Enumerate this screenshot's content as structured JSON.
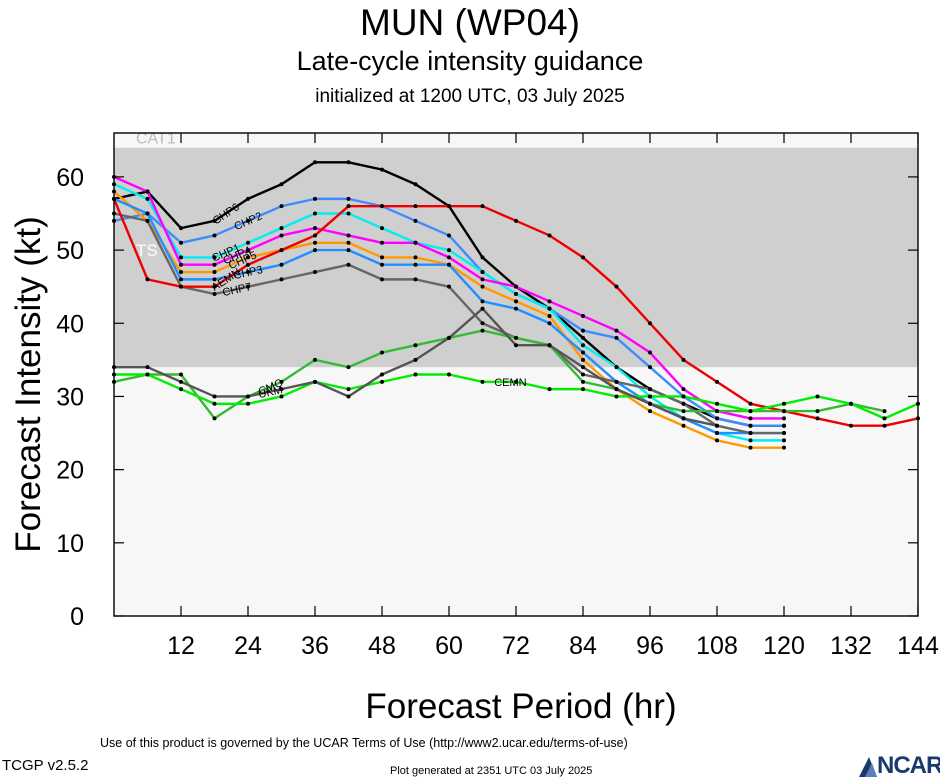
{
  "header": {
    "title": "MUN (WP04)",
    "subtitle": "Late-cycle intensity guidance",
    "init": "initialized at 1200 UTC, 03 July 2025"
  },
  "footer": {
    "terms": "Use of this product is governed by the UCAR Terms of Use (http://www2.ucar.edu/terms-of-use)",
    "version": "TCGP v2.5.2",
    "generated": "Plot generated at 2351 UTC   03 July 2025",
    "logo": "NCAR"
  },
  "colors": {
    "band_ts": "#cfcfcf",
    "band_light": "#f7f7f7",
    "band_label": "#ffffff",
    "band_label_cat": "#bbbbbb"
  },
  "chart_data": {
    "type": "line",
    "xlabel": "Forecast Period (hr)",
    "ylabel": "Forecast Intensity (kt)",
    "xlim": [
      0,
      144
    ],
    "ylim": [
      0,
      66
    ],
    "xticks": [
      12,
      24,
      36,
      48,
      60,
      72,
      84,
      96,
      108,
      120,
      132,
      144
    ],
    "yticks": [
      0,
      10,
      20,
      30,
      40,
      50,
      60
    ],
    "grid": false,
    "bands": [
      {
        "label": "TS",
        "from": 34,
        "to": 64
      },
      {
        "label": "CAT1",
        "from": 64,
        "to": 66
      }
    ],
    "series": [
      {
        "name": "CHP6",
        "color": "#000000",
        "label_at": 20,
        "points": [
          [
            0,
            57
          ],
          [
            6,
            58
          ],
          [
            12,
            53
          ],
          [
            18,
            54
          ],
          [
            24,
            57
          ],
          [
            30,
            59
          ],
          [
            36,
            62
          ],
          [
            42,
            62
          ],
          [
            48,
            61
          ],
          [
            54,
            59
          ],
          [
            60,
            56
          ],
          [
            66,
            49
          ],
          [
            72,
            45
          ],
          [
            78,
            42
          ],
          [
            84,
            38
          ],
          [
            90,
            34
          ],
          [
            96,
            31
          ],
          [
            102,
            29
          ],
          [
            108,
            27
          ],
          [
            114,
            26
          ],
          [
            120,
            26
          ]
        ]
      },
      {
        "name": "CHP2",
        "color": "#3c8cff",
        "label_at": 24,
        "points": [
          [
            0,
            54
          ],
          [
            6,
            55
          ],
          [
            12,
            51
          ],
          [
            18,
            52
          ],
          [
            24,
            54
          ],
          [
            30,
            56
          ],
          [
            36,
            57
          ],
          [
            42,
            57
          ],
          [
            48,
            56
          ],
          [
            54,
            54
          ],
          [
            60,
            52
          ],
          [
            66,
            47
          ],
          [
            72,
            44
          ],
          [
            78,
            42
          ],
          [
            84,
            39
          ],
          [
            90,
            38
          ],
          [
            96,
            34
          ],
          [
            102,
            30
          ],
          [
            108,
            27
          ],
          [
            114,
            26
          ],
          [
            120,
            26
          ]
        ]
      },
      {
        "name": "CHP1",
        "color": "#00eeee",
        "label_at": 20,
        "points": [
          [
            0,
            59
          ],
          [
            6,
            57
          ],
          [
            12,
            49
          ],
          [
            18,
            49
          ],
          [
            24,
            51
          ],
          [
            30,
            53
          ],
          [
            36,
            55
          ],
          [
            42,
            55
          ],
          [
            48,
            53
          ],
          [
            54,
            51
          ],
          [
            60,
            50
          ],
          [
            66,
            47
          ],
          [
            72,
            44
          ],
          [
            78,
            42
          ],
          [
            84,
            37
          ],
          [
            90,
            34
          ],
          [
            96,
            30
          ],
          [
            102,
            27
          ],
          [
            108,
            25
          ],
          [
            114,
            24
          ],
          [
            120,
            24
          ]
        ]
      },
      {
        "name": "CHP4",
        "color": "#ff00ff",
        "label_at": 22,
        "points": [
          [
            0,
            60
          ],
          [
            6,
            58
          ],
          [
            12,
            48
          ],
          [
            18,
            48
          ],
          [
            24,
            50
          ],
          [
            30,
            52
          ],
          [
            36,
            53
          ],
          [
            42,
            52
          ],
          [
            48,
            51
          ],
          [
            54,
            51
          ],
          [
            60,
            49
          ],
          [
            66,
            46
          ],
          [
            72,
            45
          ],
          [
            78,
            43
          ],
          [
            84,
            41
          ],
          [
            90,
            39
          ],
          [
            96,
            36
          ],
          [
            102,
            31
          ],
          [
            108,
            28
          ],
          [
            114,
            27
          ],
          [
            120,
            27
          ]
        ]
      },
      {
        "name": "CHP5",
        "color": "#ff9900",
        "label_at": 23,
        "points": [
          [
            0,
            58
          ],
          [
            6,
            54
          ],
          [
            12,
            47
          ],
          [
            18,
            47
          ],
          [
            24,
            49
          ],
          [
            30,
            50
          ],
          [
            36,
            51
          ],
          [
            42,
            51
          ],
          [
            48,
            49
          ],
          [
            54,
            49
          ],
          [
            60,
            48
          ],
          [
            66,
            45
          ],
          [
            72,
            43
          ],
          [
            78,
            41
          ],
          [
            84,
            35
          ],
          [
            90,
            31
          ],
          [
            96,
            28
          ],
          [
            102,
            26
          ],
          [
            108,
            24
          ],
          [
            114,
            23
          ],
          [
            120,
            23
          ]
        ]
      },
      {
        "name": "CHP3",
        "color": "#1e90ff",
        "label_at": 24,
        "points": [
          [
            0,
            57
          ],
          [
            6,
            55
          ],
          [
            12,
            46
          ],
          [
            18,
            46
          ],
          [
            24,
            47
          ],
          [
            30,
            48
          ],
          [
            36,
            50
          ],
          [
            42,
            50
          ],
          [
            48,
            48
          ],
          [
            54,
            48
          ],
          [
            60,
            48
          ],
          [
            66,
            43
          ],
          [
            72,
            42
          ],
          [
            78,
            40
          ],
          [
            84,
            36
          ],
          [
            90,
            32
          ],
          [
            96,
            29
          ],
          [
            102,
            27
          ],
          [
            108,
            25
          ],
          [
            114,
            25
          ],
          [
            120,
            25
          ]
        ]
      },
      {
        "name": "CHP7",
        "color": "#666666",
        "label_at": 22,
        "points": [
          [
            0,
            55
          ],
          [
            6,
            54
          ],
          [
            12,
            45
          ],
          [
            18,
            44
          ],
          [
            24,
            45
          ],
          [
            30,
            46
          ],
          [
            36,
            47
          ],
          [
            42,
            48
          ],
          [
            48,
            46
          ],
          [
            54,
            46
          ],
          [
            60,
            45
          ],
          [
            66,
            40
          ],
          [
            72,
            38
          ],
          [
            78,
            37
          ],
          [
            84,
            33
          ],
          [
            90,
            32
          ],
          [
            96,
            31
          ],
          [
            102,
            29
          ],
          [
            108,
            26
          ],
          [
            114,
            25
          ],
          [
            120,
            25
          ]
        ]
      },
      {
        "name": "AEMN",
        "color": "#ee0000",
        "label_at": 20,
        "points": [
          [
            0,
            57
          ],
          [
            6,
            46
          ],
          [
            12,
            45
          ],
          [
            18,
            45
          ],
          [
            24,
            48
          ],
          [
            30,
            50
          ],
          [
            36,
            52
          ],
          [
            42,
            56
          ],
          [
            48,
            56
          ],
          [
            54,
            56
          ],
          [
            60,
            56
          ],
          [
            66,
            56
          ],
          [
            72,
            54
          ],
          [
            78,
            52
          ],
          [
            84,
            49
          ],
          [
            90,
            45
          ],
          [
            96,
            40
          ],
          [
            102,
            35
          ],
          [
            108,
            32
          ],
          [
            114,
            29
          ],
          [
            120,
            28
          ],
          [
            126,
            27
          ],
          [
            132,
            26
          ],
          [
            138,
            26
          ],
          [
            144,
            27
          ]
        ]
      },
      {
        "name": "CMC",
        "color": "#33bb33",
        "label_at": 28,
        "points": [
          [
            0,
            32
          ],
          [
            6,
            33
          ],
          [
            12,
            33
          ],
          [
            18,
            27
          ],
          [
            24,
            30
          ],
          [
            30,
            32
          ],
          [
            36,
            35
          ],
          [
            42,
            34
          ],
          [
            48,
            36
          ],
          [
            54,
            37
          ],
          [
            60,
            38
          ],
          [
            66,
            39
          ],
          [
            72,
            38
          ],
          [
            78,
            37
          ],
          [
            84,
            32
          ],
          [
            90,
            31
          ],
          [
            96,
            29
          ],
          [
            102,
            28
          ],
          [
            108,
            28
          ],
          [
            114,
            28
          ],
          [
            120,
            28
          ],
          [
            126,
            28
          ],
          [
            132,
            29
          ],
          [
            138,
            28
          ]
        ]
      },
      {
        "name": "CEMN",
        "color": "#00ee00",
        "label_at": 71,
        "points": [
          [
            0,
            33
          ],
          [
            6,
            33
          ],
          [
            12,
            31
          ],
          [
            18,
            29
          ],
          [
            24,
            29
          ],
          [
            30,
            30
          ],
          [
            36,
            32
          ],
          [
            42,
            31
          ],
          [
            48,
            32
          ],
          [
            54,
            33
          ],
          [
            60,
            33
          ],
          [
            66,
            32
          ],
          [
            72,
            32
          ],
          [
            78,
            31
          ],
          [
            84,
            31
          ],
          [
            90,
            30
          ],
          [
            96,
            30
          ],
          [
            102,
            30
          ],
          [
            108,
            29
          ],
          [
            114,
            28
          ],
          [
            120,
            29
          ],
          [
            126,
            30
          ],
          [
            132,
            29
          ],
          [
            138,
            27
          ],
          [
            144,
            29
          ]
        ]
      },
      {
        "name": "UKM",
        "color": "#555555",
        "label_at": 28,
        "points": [
          [
            0,
            34
          ],
          [
            6,
            34
          ],
          [
            12,
            32
          ],
          [
            18,
            30
          ],
          [
            24,
            30
          ],
          [
            30,
            31
          ],
          [
            36,
            32
          ],
          [
            42,
            30
          ],
          [
            48,
            33
          ],
          [
            54,
            35
          ],
          [
            60,
            38
          ],
          [
            66,
            42
          ],
          [
            72,
            37
          ],
          [
            78,
            37
          ],
          [
            84,
            34
          ],
          [
            90,
            31
          ],
          [
            96,
            29
          ],
          [
            102,
            27
          ],
          [
            108,
            26
          ]
        ]
      }
    ]
  }
}
